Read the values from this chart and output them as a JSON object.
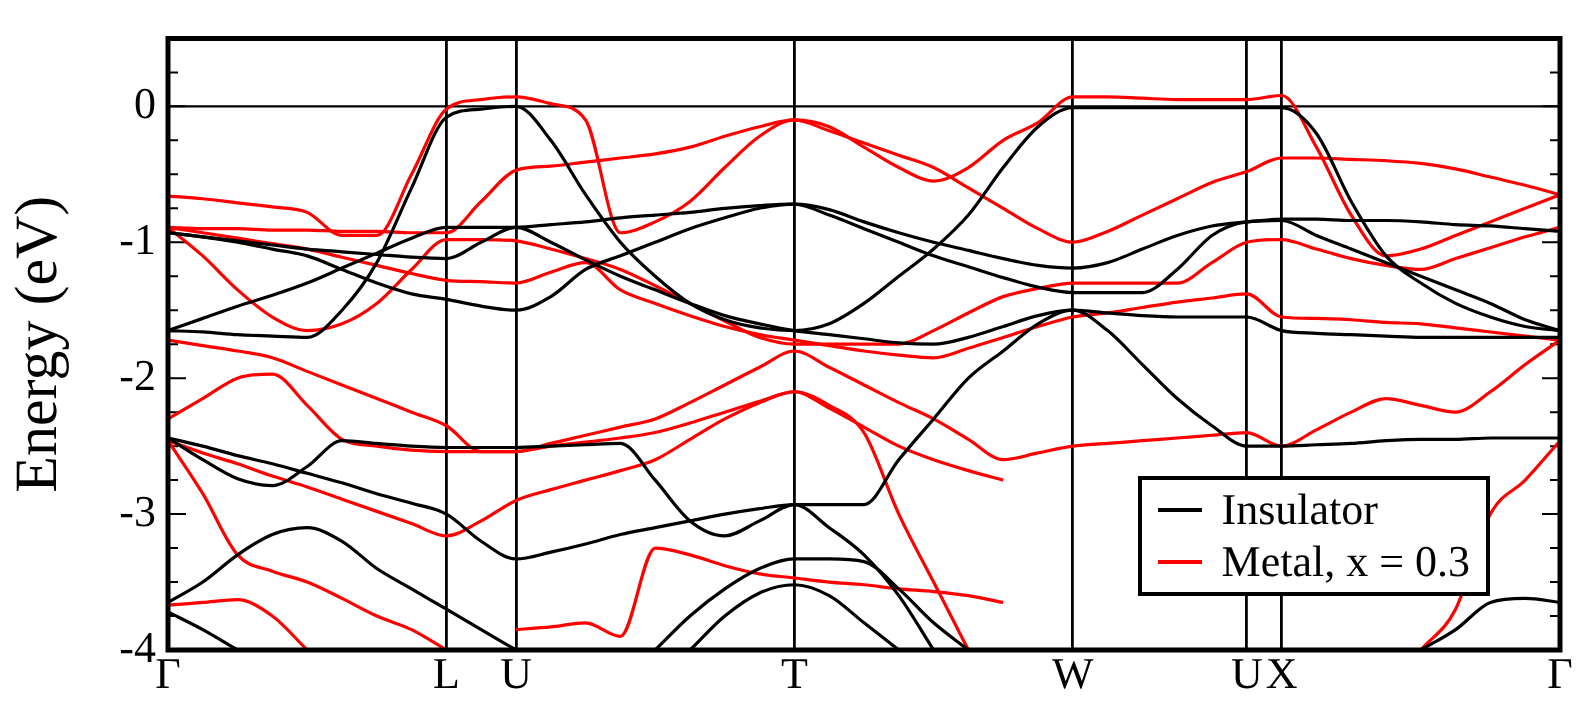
{
  "chart_data": {
    "type": "line",
    "ylabel": "Energy (eV)",
    "ylim": [
      -4,
      0.5
    ],
    "categories": [
      "Γ",
      null,
      null,
      null,
      null,
      null,
      null,
      null,
      "L",
      null,
      "U",
      null,
      null,
      null,
      null,
      null,
      null,
      null,
      "T",
      null,
      null,
      null,
      null,
      null,
      null,
      null,
      "W",
      null,
      null,
      null,
      null,
      "U",
      "X",
      null,
      null,
      null,
      null,
      null,
      null,
      null,
      "Γ"
    ],
    "yticks": [
      -4,
      {
        "value": -3.75,
        "label": null
      },
      {
        "value": -3.5,
        "label": null
      },
      {
        "value": -3.25,
        "label": null
      },
      -3,
      {
        "value": -2.75,
        "label": null
      },
      {
        "value": -2.5,
        "label": null
      },
      {
        "value": -2.25,
        "label": null
      },
      -2,
      {
        "value": -1.75,
        "label": null
      },
      {
        "value": -1.5,
        "label": null
      },
      {
        "value": -1.25,
        "label": null
      },
      -1,
      {
        "value": -0.75,
        "label": null
      },
      {
        "value": -0.5,
        "label": null
      },
      {
        "value": -0.25,
        "label": null
      },
      0,
      {
        "value": 0.25,
        "label": null
      }
    ],
    "grid": "x",
    "legend": "bottom right",
    "marker": "none",
    "line_style": "solid",
    "ref_lines": [
      {
        "axis": "y",
        "value": 0,
        "color": "#000000"
      }
    ],
    "series": [
      {
        "name": "Insulator",
        "color": "#000000",
        "values": [
          -1.65,
          -1.66,
          -1.68,
          -1.69,
          -1.7,
          -1.5,
          -1.15,
          -0.6,
          -0.08,
          -0.02,
          0,
          -0.25,
          -0.65,
          -1.0,
          -1.25,
          -1.45,
          -1.57,
          -1.63,
          -1.65,
          -1.6,
          -1.45,
          -1.25,
          -1.05,
          -0.8,
          -0.45,
          -0.15,
          -0.01,
          -0.01,
          -0.01,
          -0.01,
          -0.01,
          -0.01,
          -0.01,
          -0.2,
          -0.7,
          -1.1,
          -1.3,
          -1.45,
          -1.55,
          -1.62,
          -1.65
        ]
      },
      {
        "color": "#000000",
        "values": [
          -1.65,
          -1.56,
          -1.47,
          -1.39,
          -1.3,
          -1.19,
          -1.08,
          -0.97,
          -0.89,
          -0.89,
          -0.89,
          -0.87,
          -0.85,
          -0.82,
          -0.8,
          -0.78,
          -0.75,
          -0.73,
          -0.72,
          -0.76,
          -0.85,
          -0.93,
          -1.0,
          -1.06,
          -1.12,
          -1.17,
          -1.19,
          -1.15,
          -1.05,
          -0.95,
          -0.88,
          -0.85,
          -0.83,
          -0.83,
          -0.84,
          -0.84,
          -0.85,
          -0.87,
          -0.88,
          -0.9,
          -0.92
        ]
      },
      {
        "color": "#000000",
        "values": [
          -0.93,
          -0.96,
          -1.0,
          -1.05,
          -1.1,
          -1.2,
          -1.3,
          -1.38,
          -1.42,
          -1.47,
          -1.5,
          -1.4,
          -1.2,
          -1.1,
          -1.0,
          -0.9,
          -0.82,
          -0.75,
          -0.72,
          -0.8,
          -0.9,
          -1.0,
          -1.1,
          -1.18,
          -1.26,
          -1.33,
          -1.37,
          -1.37,
          -1.37,
          -1.2,
          -0.95,
          -0.85,
          -0.84,
          -0.95,
          -1.05,
          -1.15,
          -1.25,
          -1.35,
          -1.45,
          -1.57,
          -1.65
        ]
      },
      {
        "color": "#000000",
        "values": [
          -0.93,
          -0.96,
          -0.99,
          -1.02,
          -1.05,
          -1.07,
          -1.09,
          -1.11,
          -1.12,
          -1.0,
          -0.89,
          -1.0,
          -1.13,
          -1.25,
          -1.35,
          -1.45,
          -1.54,
          -1.6,
          -1.65,
          -1.68,
          -1.71,
          -1.74,
          -1.75,
          -1.7,
          -1.62,
          -1.54,
          -1.5,
          -1.52,
          -1.54,
          -1.55,
          -1.55,
          -1.55,
          -1.65,
          -1.67,
          -1.68,
          -1.69,
          -1.7,
          -1.7,
          -1.7,
          -1.7,
          -1.7
        ]
      },
      {
        "color": "#000000",
        "values": [
          -2.44,
          -2.6,
          -2.74,
          -2.79,
          -2.65,
          -2.46,
          -2.48,
          -2.5,
          -2.51,
          -2.51,
          -2.51,
          -2.5,
          -2.49,
          -2.48,
          -2.75,
          -3.05,
          -3.16,
          -3.05,
          -2.93,
          -2.93,
          -2.93,
          -2.6,
          -2.3,
          -2.0,
          -1.8,
          -1.6,
          -1.5,
          -1.65,
          -1.9,
          -2.15,
          -2.35,
          -2.5,
          -2.5,
          -2.49,
          -2.48,
          -2.46,
          -2.45,
          -2.45,
          -2.44,
          -2.44,
          -2.44
        ]
      },
      {
        "color": "#000000",
        "values": [
          -2.44,
          -2.5,
          -2.57,
          -2.63,
          -2.7,
          -2.77,
          -2.85,
          -2.92,
          -3.0,
          -3.2,
          -3.33,
          -3.28,
          -3.22,
          -3.15,
          -3.1,
          -3.05,
          -3.0,
          -2.96,
          -2.93,
          -3.1,
          -3.3,
          -3.6,
          -4.0,
          null,
          null,
          null,
          null,
          null,
          null,
          null,
          null,
          null,
          null,
          null,
          null,
          null,
          null,
          null,
          null,
          null,
          null
        ]
      },
      {
        "color": "#000000",
        "values": [
          -3.65,
          -3.5,
          -3.3,
          -3.15,
          -3.1,
          -3.2,
          -3.4,
          -3.55,
          -3.7,
          -3.85,
          -4.0,
          null,
          null,
          null,
          null,
          null,
          null,
          null,
          null,
          null,
          null,
          null,
          null,
          null,
          null,
          null,
          null,
          null,
          null,
          null,
          null,
          null,
          null,
          null,
          null,
          null,
          null,
          null,
          null,
          null,
          null
        ]
      },
      {
        "color": "#000000",
        "values": [
          null,
          null,
          null,
          null,
          null,
          null,
          null,
          null,
          null,
          null,
          null,
          null,
          null,
          null,
          -4.0,
          -3.75,
          -3.55,
          -3.4,
          -3.33,
          -3.33,
          -3.35,
          -3.55,
          -3.8,
          -4.0,
          null,
          null,
          null,
          null,
          null,
          null,
          null,
          null,
          null,
          null,
          null,
          null,
          null,
          null,
          null,
          null,
          null
        ]
      },
      {
        "color": "#000000",
        "values": [
          null,
          null,
          null,
          null,
          null,
          null,
          null,
          null,
          null,
          null,
          null,
          null,
          null,
          null,
          null,
          -4.0,
          -3.75,
          -3.58,
          -3.52,
          -3.6,
          -3.8,
          -4.0,
          null,
          null,
          null,
          null,
          null,
          null,
          null,
          null,
          null,
          null,
          null,
          null,
          null,
          null,
          null,
          null,
          null,
          null,
          null
        ]
      },
      {
        "color": "#000000",
        "values": [
          -3.72,
          -3.85,
          -4.0,
          null,
          null,
          null,
          null,
          null,
          null,
          null,
          null,
          null,
          null,
          null,
          null,
          null,
          null,
          null,
          null,
          null,
          null,
          null,
          null,
          null,
          null,
          null,
          null,
          null,
          null,
          null,
          null,
          null,
          null,
          null,
          null,
          null,
          null,
          null,
          null,
          null,
          null
        ]
      },
      {
        "color": "#000000",
        "values": [
          null,
          null,
          null,
          null,
          null,
          null,
          null,
          null,
          null,
          null,
          null,
          null,
          null,
          null,
          null,
          null,
          null,
          null,
          null,
          null,
          null,
          null,
          null,
          null,
          null,
          null,
          null,
          null,
          null,
          null,
          null,
          null,
          null,
          null,
          null,
          null,
          -4.0,
          -3.85,
          -3.65,
          -3.62,
          -3.65
        ]
      },
      {
        "name": "Metal, x = 0.3",
        "color": "#ff0000",
        "values": [
          -0.66,
          -0.68,
          -0.71,
          -0.74,
          -0.78,
          -0.95,
          -0.95,
          -0.5,
          -0.02,
          0.05,
          0.07,
          0.02,
          -0.1,
          -0.93,
          -0.85,
          -0.7,
          -0.45,
          -0.22,
          -0.1,
          -0.15,
          -0.3,
          -0.45,
          -0.55,
          -0.45,
          -0.25,
          -0.12,
          0.07,
          0.07,
          0.06,
          0.05,
          0.05,
          0.05,
          0.08,
          -0.3,
          -0.8,
          -1.1,
          -1.05,
          -0.95,
          -0.85,
          -0.75,
          -0.65
        ]
      },
      {
        "color": "#ff0000",
        "values": [
          -0.89,
          -0.9,
          -0.9,
          -0.91,
          -0.91,
          -0.92,
          -0.92,
          -0.93,
          -0.93,
          -0.7,
          -0.47,
          -0.44,
          -0.41,
          -0.38,
          -0.35,
          -0.3,
          -0.22,
          -0.15,
          -0.1,
          -0.18,
          -0.27,
          -0.36,
          -0.45,
          -0.6,
          -0.75,
          -0.9,
          -1.0,
          -0.92,
          -0.8,
          -0.68,
          -0.56,
          -0.48,
          -0.38,
          -0.38,
          -0.39,
          -0.4,
          -0.42,
          -0.46,
          -0.52,
          -0.58,
          -0.65
        ]
      },
      {
        "color": "#ff0000",
        "values": [
          -0.89,
          -1.1,
          -1.35,
          -1.55,
          -1.65,
          -1.6,
          -1.45,
          -1.2,
          -0.98,
          -0.98,
          -0.99,
          -1.05,
          -1.12,
          -1.2,
          -1.32,
          -1.45,
          -1.58,
          -1.7,
          -1.75,
          -1.75,
          -1.75,
          -1.75,
          -1.65,
          -1.52,
          -1.4,
          -1.34,
          -1.3,
          -1.3,
          -1.3,
          -1.3,
          -1.15,
          -1.0,
          -0.98,
          -1.05,
          -1.12,
          -1.17,
          -1.2,
          -1.12,
          -1.04,
          -0.96,
          -0.89
        ]
      },
      {
        "color": "#ff0000",
        "values": [
          -0.89,
          -0.93,
          -0.97,
          -1.01,
          -1.05,
          -1.11,
          -1.17,
          -1.23,
          -1.28,
          -1.29,
          -1.3,
          -1.22,
          -1.15,
          -1.35,
          -1.45,
          -1.54,
          -1.62,
          -1.68,
          -1.72,
          -1.76,
          -1.8,
          -1.83,
          -1.85,
          -1.78,
          -1.7,
          -1.62,
          -1.55,
          -1.52,
          -1.48,
          -1.44,
          -1.41,
          -1.38,
          -1.55,
          -1.56,
          -1.57,
          -1.59,
          -1.6,
          -1.63,
          -1.66,
          -1.69,
          -1.72
        ]
      },
      {
        "color": "#ff0000",
        "values": [
          -1.72,
          -1.76,
          -1.8,
          -1.85,
          -1.95,
          -2.05,
          -2.15,
          -2.25,
          -2.35,
          -2.54,
          -2.54,
          -2.48,
          -2.42,
          -2.36,
          -2.3,
          -2.18,
          -2.05,
          -1.92,
          -1.8,
          -1.92,
          -2.05,
          -2.18,
          -2.3,
          -2.45,
          -2.6,
          -2.55,
          -2.5,
          -2.48,
          -2.46,
          -2.44,
          -2.42,
          -2.4,
          -2.5,
          -2.38,
          -2.25,
          -2.15,
          -2.2,
          -2.25,
          -2.1,
          -1.9,
          -1.72
        ]
      },
      {
        "color": "#ff0000",
        "values": [
          -2.3,
          -2.15,
          -2.0,
          -1.97,
          -2.2,
          -2.45,
          -2.5,
          -2.53,
          -2.54,
          -2.54,
          -2.54,
          -2.5,
          -2.47,
          -2.44,
          -2.4,
          -2.33,
          -2.25,
          -2.17,
          -2.1,
          -2.22,
          -2.36,
          -2.5,
          -2.6,
          -2.68,
          -2.75,
          null,
          null,
          null,
          null,
          null,
          null,
          null,
          null,
          null,
          null,
          null,
          null,
          null,
          null,
          null,
          null
        ]
      },
      {
        "color": "#ff0000",
        "values": [
          -2.46,
          -2.55,
          -2.63,
          -2.72,
          -2.8,
          -2.89,
          -2.98,
          -3.07,
          -3.16,
          -3.05,
          -2.9,
          -2.82,
          -2.75,
          -2.68,
          -2.6,
          -2.45,
          -2.3,
          -2.18,
          -2.1,
          -2.2,
          -2.4,
          -3.0,
          -3.5,
          -4.0,
          null,
          null,
          null,
          null,
          null,
          null,
          null,
          null,
          null,
          null,
          null,
          null,
          null,
          null,
          null,
          null,
          null
        ]
      },
      {
        "color": "#ff0000",
        "values": [
          -2.46,
          -2.85,
          -3.3,
          -3.42,
          -3.5,
          -3.62,
          -3.75,
          -3.85,
          -4.0,
          null,
          null,
          null,
          null,
          null,
          null,
          null,
          null,
          null,
          null,
          null,
          null,
          null,
          null,
          null,
          null,
          null,
          null,
          null,
          null,
          null,
          null,
          null,
          null,
          null,
          null,
          null,
          null,
          null,
          null,
          null,
          null
        ]
      },
      {
        "color": "#ff0000",
        "values": [
          null,
          null,
          null,
          null,
          null,
          null,
          null,
          null,
          null,
          null,
          -3.85,
          -3.83,
          -3.8,
          -3.9,
          -3.25,
          -3.3,
          -3.38,
          -3.44,
          -3.47,
          -3.5,
          -3.52,
          -3.55,
          -3.57,
          -3.6,
          -3.65,
          null,
          null,
          null,
          null,
          null,
          null,
          null,
          null,
          null,
          null,
          null,
          null,
          null,
          null,
          null,
          null
        ]
      },
      {
        "color": "#ff0000",
        "values": [
          -3.67,
          -3.65,
          -3.63,
          -3.75,
          -4.0,
          null,
          null,
          null,
          null,
          null,
          null,
          null,
          null,
          null,
          null,
          null,
          null,
          null,
          null,
          null,
          null,
          null,
          null,
          null,
          null,
          null,
          null,
          null,
          null,
          null,
          null,
          null,
          null,
          null,
          null,
          null,
          null,
          null,
          null,
          null,
          null
        ]
      },
      {
        "color": "#ff0000",
        "values": [
          null,
          null,
          null,
          null,
          null,
          null,
          null,
          null,
          null,
          null,
          null,
          null,
          null,
          null,
          null,
          null,
          null,
          null,
          null,
          null,
          null,
          null,
          null,
          null,
          null,
          null,
          null,
          null,
          null,
          null,
          null,
          null,
          null,
          null,
          null,
          null,
          -4.0,
          -3.7,
          -3.0,
          -2.75,
          -2.46
        ]
      }
    ]
  }
}
